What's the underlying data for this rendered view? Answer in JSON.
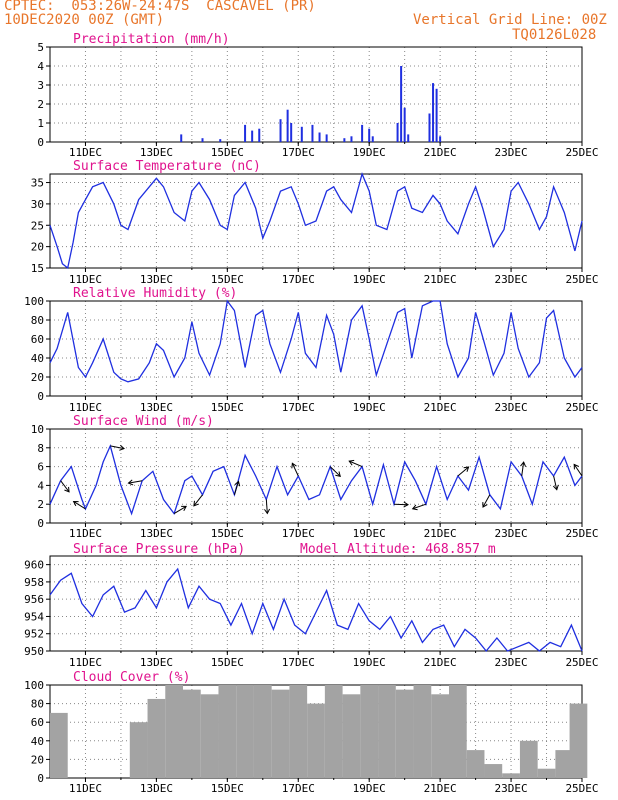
{
  "header": {
    "line1": "CPTEC:  053:26W-24:47S  CASCAVEL (PR)",
    "line2": "10DEC2020 00Z (GMT)",
    "grid_note": "Vertical Grid Line: 00Z",
    "code": "TQ0126L028"
  },
  "colors": {
    "series": "#1f2fe0",
    "cloud": "#a3a3a3",
    "title": "#e0138e",
    "header": "#e8762b"
  },
  "x_axis": {
    "start_day": 10,
    "end_day": 25,
    "tick_labels": [
      "11DEC",
      "13DEC",
      "15DEC",
      "17DEC",
      "19DEC",
      "21DEC",
      "23DEC",
      "25DEC"
    ]
  },
  "panels": {
    "precip": {
      "title": "Precipitation (mm/h)",
      "y_ticks": [
        "0",
        "1",
        "2",
        "3",
        "4",
        "5"
      ]
    },
    "temp": {
      "title": "Surface Temperature (nC)",
      "y_ticks": [
        "15",
        "20",
        "25",
        "30",
        "35"
      ]
    },
    "rh": {
      "title": "Relative Humidity (%)",
      "y_ticks": [
        "0",
        "20",
        "40",
        "60",
        "80",
        "100"
      ]
    },
    "wind": {
      "title": "Surface Wind (m/s)",
      "y_ticks": [
        "0",
        "2",
        "4",
        "6",
        "8",
        "10"
      ]
    },
    "pres": {
      "title": "Surface Pressure (hPa)",
      "altitude": "Model Altitude: 468.857 m",
      "y_ticks": [
        "950",
        "952",
        "954",
        "956",
        "958",
        "960"
      ]
    },
    "cloud": {
      "title": "Cloud Cover (%)",
      "y_ticks": [
        "0",
        "20",
        "40",
        "60",
        "80",
        "100"
      ]
    }
  },
  "chart_data": [
    {
      "type": "bar",
      "title": "Precipitation (mm/h)",
      "ylim": [
        0,
        5
      ],
      "x_unit": "day of December 2020",
      "x": [
        13.7,
        14.3,
        14.8,
        15.5,
        15.7,
        15.9,
        16.5,
        16.7,
        16.8,
        17.1,
        17.4,
        17.6,
        17.8,
        18.3,
        18.5,
        18.8,
        19.0,
        19.1,
        19.8,
        19.9,
        20.0,
        20.1,
        20.7,
        20.8,
        20.9,
        21.0
      ],
      "values": [
        0.4,
        0.2,
        0.15,
        0.9,
        0.6,
        0.7,
        1.2,
        1.7,
        1.0,
        0.8,
        0.9,
        0.5,
        0.4,
        0.2,
        0.3,
        0.9,
        0.7,
        0.3,
        1.0,
        4.0,
        1.8,
        0.4,
        1.5,
        3.1,
        2.8,
        0.3
      ]
    },
    {
      "type": "line",
      "title": "Surface Temperature (nC)",
      "ylim": [
        15,
        37
      ],
      "x_unit": "day of December 2020",
      "x": [
        10.0,
        10.2,
        10.35,
        10.5,
        10.65,
        10.8,
        11.0,
        11.2,
        11.5,
        11.8,
        12.0,
        12.2,
        12.5,
        12.8,
        13.0,
        13.2,
        13.5,
        13.8,
        14.0,
        14.2,
        14.5,
        14.8,
        15.0,
        15.2,
        15.5,
        15.8,
        16.0,
        16.2,
        16.5,
        16.8,
        17.0,
        17.2,
        17.5,
        17.8,
        18.0,
        18.2,
        18.5,
        18.8,
        19.0,
        19.2,
        19.5,
        19.8,
        20.0,
        20.2,
        20.5,
        20.8,
        21.0,
        21.2,
        21.5,
        21.8,
        22.0,
        22.2,
        22.5,
        22.8,
        23.0,
        23.2,
        23.5,
        23.8,
        24.0,
        24.2,
        24.5,
        24.8,
        25.0
      ],
      "y": [
        25,
        20,
        16,
        15,
        21,
        28,
        31,
        34,
        35,
        30,
        25,
        24,
        31,
        34,
        36,
        34,
        28,
        26,
        33,
        35,
        31,
        25,
        24,
        32,
        35,
        29,
        22,
        26,
        33,
        34,
        30,
        25,
        26,
        33,
        34,
        31,
        28,
        37,
        33,
        25,
        24,
        33,
        34,
        29,
        28,
        32,
        30,
        26,
        23,
        30,
        34,
        29,
        20,
        24,
        33,
        35,
        30,
        24,
        27,
        34,
        28,
        19,
        26
      ]
    },
    {
      "type": "line",
      "title": "Relative Humidity (%)",
      "ylim": [
        0,
        100
      ],
      "x_unit": "day of December 2020",
      "x": [
        10.0,
        10.2,
        10.5,
        10.8,
        11.0,
        11.2,
        11.5,
        11.8,
        12.0,
        12.2,
        12.5,
        12.8,
        13.0,
        13.2,
        13.5,
        13.8,
        14.0,
        14.2,
        14.5,
        14.8,
        15.0,
        15.2,
        15.5,
        15.8,
        16.0,
        16.2,
        16.5,
        16.8,
        17.0,
        17.2,
        17.5,
        17.8,
        18.0,
        18.2,
        18.5,
        18.8,
        19.0,
        19.2,
        19.5,
        19.8,
        20.0,
        20.2,
        20.5,
        20.8,
        21.0,
        21.2,
        21.5,
        21.8,
        22.0,
        22.2,
        22.5,
        22.8,
        23.0,
        23.2,
        23.5,
        23.8,
        24.0,
        24.2,
        24.5,
        24.8,
        25.0
      ],
      "y": [
        35,
        50,
        88,
        30,
        20,
        35,
        60,
        25,
        18,
        15,
        18,
        35,
        55,
        48,
        20,
        40,
        78,
        45,
        22,
        55,
        100,
        90,
        30,
        85,
        90,
        55,
        25,
        60,
        88,
        45,
        30,
        85,
        65,
        25,
        80,
        95,
        60,
        22,
        55,
        88,
        92,
        40,
        95,
        100,
        100,
        55,
        20,
        40,
        88,
        62,
        22,
        45,
        88,
        50,
        20,
        35,
        82,
        90,
        40,
        20,
        30
      ]
    },
    {
      "type": "line",
      "title": "Surface Wind (m/s)",
      "ylim": [
        0,
        10
      ],
      "x_unit": "day of December 2020",
      "x": [
        10.0,
        10.3,
        10.6,
        10.9,
        11.0,
        11.3,
        11.5,
        11.7,
        12.0,
        12.3,
        12.6,
        12.9,
        13.2,
        13.5,
        13.8,
        14.0,
        14.3,
        14.6,
        14.9,
        15.2,
        15.5,
        15.8,
        16.1,
        16.4,
        16.7,
        17.0,
        17.3,
        17.6,
        17.9,
        18.2,
        18.5,
        18.8,
        19.1,
        19.4,
        19.7,
        20.0,
        20.3,
        20.6,
        20.9,
        21.2,
        21.5,
        21.8,
        22.1,
        22.4,
        22.7,
        23.0,
        23.3,
        23.6,
        23.9,
        24.2,
        24.5,
        24.8,
        25.0
      ],
      "y": [
        2,
        4.5,
        6,
        2.5,
        1.5,
        4,
        6.5,
        8.2,
        4,
        1,
        4.5,
        5.5,
        2.5,
        1,
        4.5,
        5,
        3,
        5.5,
        6,
        3,
        7.2,
        5,
        2.5,
        6,
        3,
        5,
        2.5,
        3,
        6,
        2.5,
        4.5,
        6,
        2,
        6.2,
        2,
        6.5,
        4.5,
        2,
        6,
        2.5,
        5,
        3.5,
        7,
        3,
        1.5,
        6.5,
        5,
        2,
        6.5,
        5,
        7,
        4,
        5
      ]
    },
    {
      "type": "line",
      "title": "Surface Pressure (hPa)",
      "ylim": [
        950,
        961
      ],
      "x_unit": "day of December 2020",
      "x": [
        10.0,
        10.3,
        10.6,
        10.9,
        11.2,
        11.5,
        11.8,
        12.1,
        12.4,
        12.7,
        13.0,
        13.3,
        13.6,
        13.9,
        14.2,
        14.5,
        14.8,
        15.1,
        15.4,
        15.7,
        16.0,
        16.3,
        16.6,
        16.9,
        17.2,
        17.5,
        17.8,
        18.1,
        18.4,
        18.7,
        19.0,
        19.3,
        19.6,
        19.9,
        20.2,
        20.5,
        20.8,
        21.1,
        21.4,
        21.7,
        22.0,
        22.3,
        22.6,
        22.9,
        23.2,
        23.5,
        23.8,
        24.1,
        24.4,
        24.7,
        25.0
      ],
      "y": [
        956.5,
        958.2,
        959,
        955.5,
        954,
        956.5,
        957.5,
        954.5,
        955,
        957,
        955,
        958,
        959.5,
        955,
        957.5,
        956,
        955.5,
        953,
        955.5,
        952,
        955.5,
        952.5,
        956,
        953,
        952,
        954.5,
        957,
        953,
        952.5,
        955.5,
        953.5,
        952.5,
        954,
        951.5,
        953.5,
        951,
        952.5,
        953,
        950.5,
        952.5,
        951.5,
        950,
        951.5,
        950,
        950.5,
        951,
        950,
        951,
        950.5,
        953,
        950
      ]
    },
    {
      "type": "bar",
      "title": "Cloud Cover (%)",
      "ylim": [
        0,
        100
      ],
      "x_unit": "day of December 2020",
      "x": [
        10.25,
        10.5,
        11.0,
        11.5,
        12.0,
        12.5,
        13.0,
        13.5,
        14.0,
        14.5,
        15.0,
        15.5,
        16.0,
        16.5,
        17.0,
        17.5,
        18.0,
        18.5,
        19.0,
        19.5,
        20.0,
        20.5,
        21.0,
        21.5,
        22.0,
        22.5,
        23.0,
        23.5,
        24.0,
        24.5,
        24.9
      ],
      "values": [
        70,
        0,
        0,
        0,
        0,
        60,
        85,
        100,
        95,
        90,
        100,
        100,
        100,
        95,
        100,
        80,
        100,
        90,
        100,
        100,
        95,
        100,
        90,
        100,
        30,
        15,
        5,
        40,
        10,
        30,
        80
      ]
    }
  ]
}
